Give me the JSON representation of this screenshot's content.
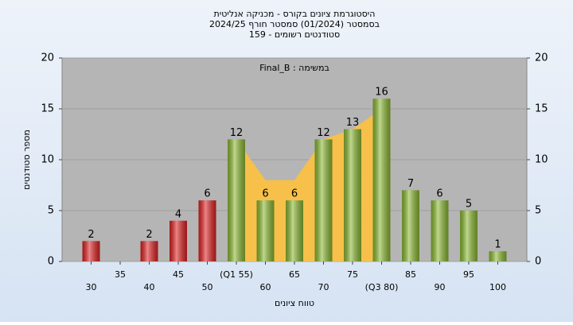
{
  "chart_data": {
    "type": "bar",
    "title": [
      "היסטוגרמת ציונים בקורס - מכניקה אנליטית",
      "בסמסטר  (01/2024)  סמסטר חורף 2024/25",
      "סטודנטים רשומים - 159"
    ],
    "annotation": "Final_B : במשימה",
    "x_label": "טווח ציונים",
    "y_label": "מספר סטודנטים",
    "categories": [
      "30",
      "35",
      "40",
      "45",
      "50",
      "(Q1 55)",
      "60",
      "65",
      "70",
      "75",
      "(Q3 80)",
      "85",
      "90",
      "95",
      "100"
    ],
    "values": [
      2,
      null,
      2,
      4,
      6,
      12,
      6,
      6,
      12,
      13,
      16,
      7,
      6,
      5,
      1
    ],
    "colors": [
      "#e02020",
      "#e02020",
      "#e02020",
      "#e02020",
      "#e02020",
      "#8ab830",
      "#8ab830",
      "#8ab830",
      "#8ab830",
      "#8ab830",
      "#8ab830",
      "#8ab830",
      "#8ab830",
      "#8ab830",
      "#8ab830"
    ],
    "iqr_area": {
      "color": "#f7c04a",
      "start": 5,
      "values": [
        12,
        8,
        8,
        12,
        13,
        15
      ]
    },
    "ylim": [
      0,
      20
    ],
    "yticks": [
      0,
      5,
      10,
      15,
      20
    ],
    "grid": true
  }
}
